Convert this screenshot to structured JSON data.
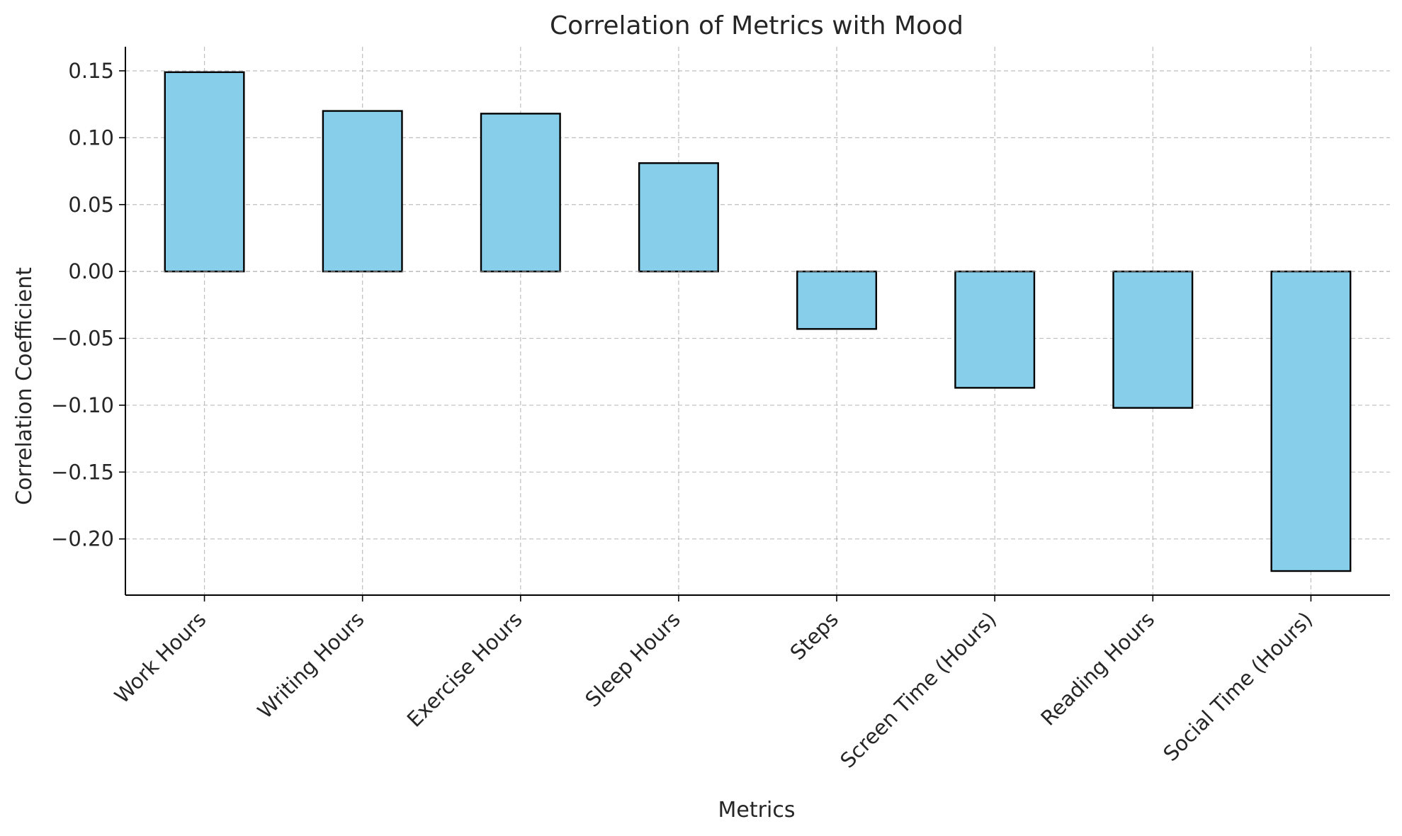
{
  "chart_data": {
    "type": "bar",
    "title": "Correlation of Metrics with Mood",
    "xlabel": "Metrics",
    "ylabel": "Correlation Coefficient",
    "categories": [
      "Work Hours",
      "Writing Hours",
      "Exercise Hours",
      "Sleep Hours",
      "Steps",
      "Screen Time (Hours)",
      "Reading Hours",
      "Social Time (Hours)"
    ],
    "values": [
      0.149,
      0.12,
      0.118,
      0.081,
      -0.043,
      -0.087,
      -0.102,
      -0.224
    ],
    "ylim": [
      -0.242,
      0.168
    ],
    "yticks": [
      0.15,
      0.1,
      0.05,
      0.0,
      -0.05,
      -0.1,
      -0.15,
      -0.2
    ],
    "ytick_labels": [
      "0.15",
      "0.10",
      "0.05",
      "0.00",
      "−0.05",
      "−0.10",
      "−0.15",
      "−0.20"
    ],
    "bar_color": "#87ceeb",
    "edge_color": "#000000",
    "grid": true,
    "legend": "none"
  }
}
